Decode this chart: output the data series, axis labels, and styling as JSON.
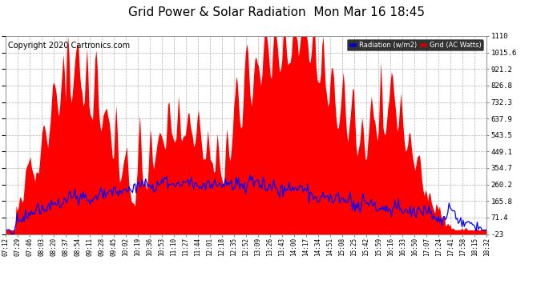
{
  "title": "Grid Power & Solar Radiation  Mon Mar 16 18:45",
  "copyright": "Copyright 2020 Cartronics.com",
  "legend_labels": [
    "Radiation (w/m2)",
    "Grid (AC Watts)"
  ],
  "bg_color": "#ffffff",
  "grid_color": "#b0b0b0",
  "fill_color": "#ff0000",
  "line_color": "#0000ff",
  "title_fontsize": 11,
  "copyright_fontsize": 7,
  "ymin": -23.0,
  "ymax": 1110.0,
  "yticks": [
    -23.0,
    71.4,
    165.8,
    260.2,
    354.7,
    449.1,
    543.5,
    637.9,
    732.3,
    826.8,
    921.2,
    1015.6,
    1110.0
  ],
  "x_labels": [
    "07:12",
    "07:29",
    "07:46",
    "08:03",
    "08:20",
    "08:37",
    "08:54",
    "09:11",
    "09:28",
    "09:45",
    "10:02",
    "10:19",
    "10:36",
    "10:53",
    "11:10",
    "11:27",
    "11:44",
    "12:01",
    "12:18",
    "12:35",
    "12:52",
    "13:09",
    "13:26",
    "13:43",
    "14:00",
    "14:17",
    "14:34",
    "14:51",
    "15:08",
    "15:25",
    "15:42",
    "15:59",
    "16:16",
    "16:33",
    "16:50",
    "17:07",
    "17:24",
    "17:41",
    "17:58",
    "18:15",
    "18:32"
  ],
  "n_points": 410
}
